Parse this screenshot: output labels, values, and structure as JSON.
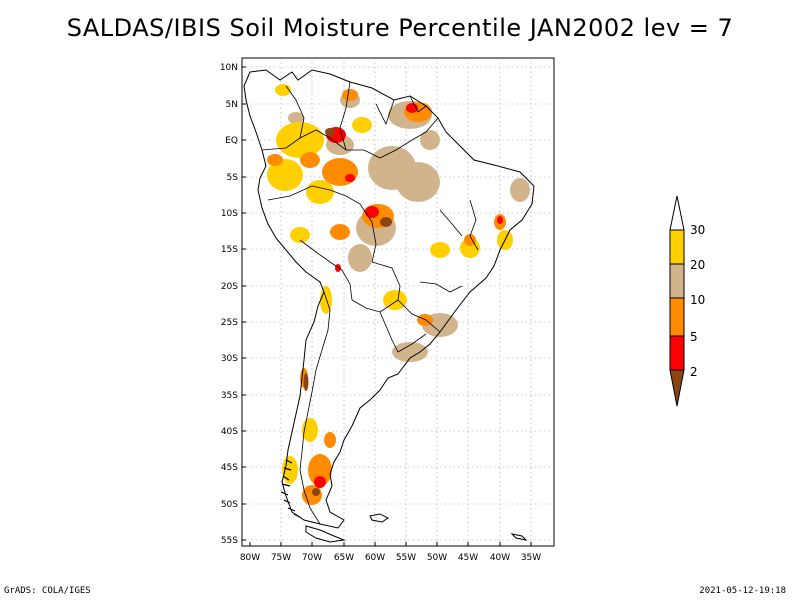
{
  "title": "SALDAS/IBIS Soil Moisture Percentile JAN2002 lev = 7",
  "lat_labels": [
    "10N",
    "5N",
    "EQ",
    "5S",
    "10S",
    "15S",
    "20S",
    "25S",
    "30S",
    "35S",
    "40S",
    "45S",
    "50S",
    "55S"
  ],
  "lon_labels": [
    "80W",
    "75W",
    "70W",
    "65W",
    "60W",
    "55W",
    "50W",
    "45W",
    "40W",
    "35W"
  ],
  "legend": {
    "labels": [
      "30",
      "20",
      "10",
      "5",
      "2"
    ],
    "colors": {
      "above30": "#ffffff",
      "b20_30": "#ffd000",
      "b10_20": "#d2b48c",
      "b5_10": "#ff8c00",
      "b2_5": "#ff0000",
      "below2": "#8b4513"
    }
  },
  "footer": {
    "left": "GrADS: COLA/IGES",
    "right": "2021-05-12-19:18"
  }
}
